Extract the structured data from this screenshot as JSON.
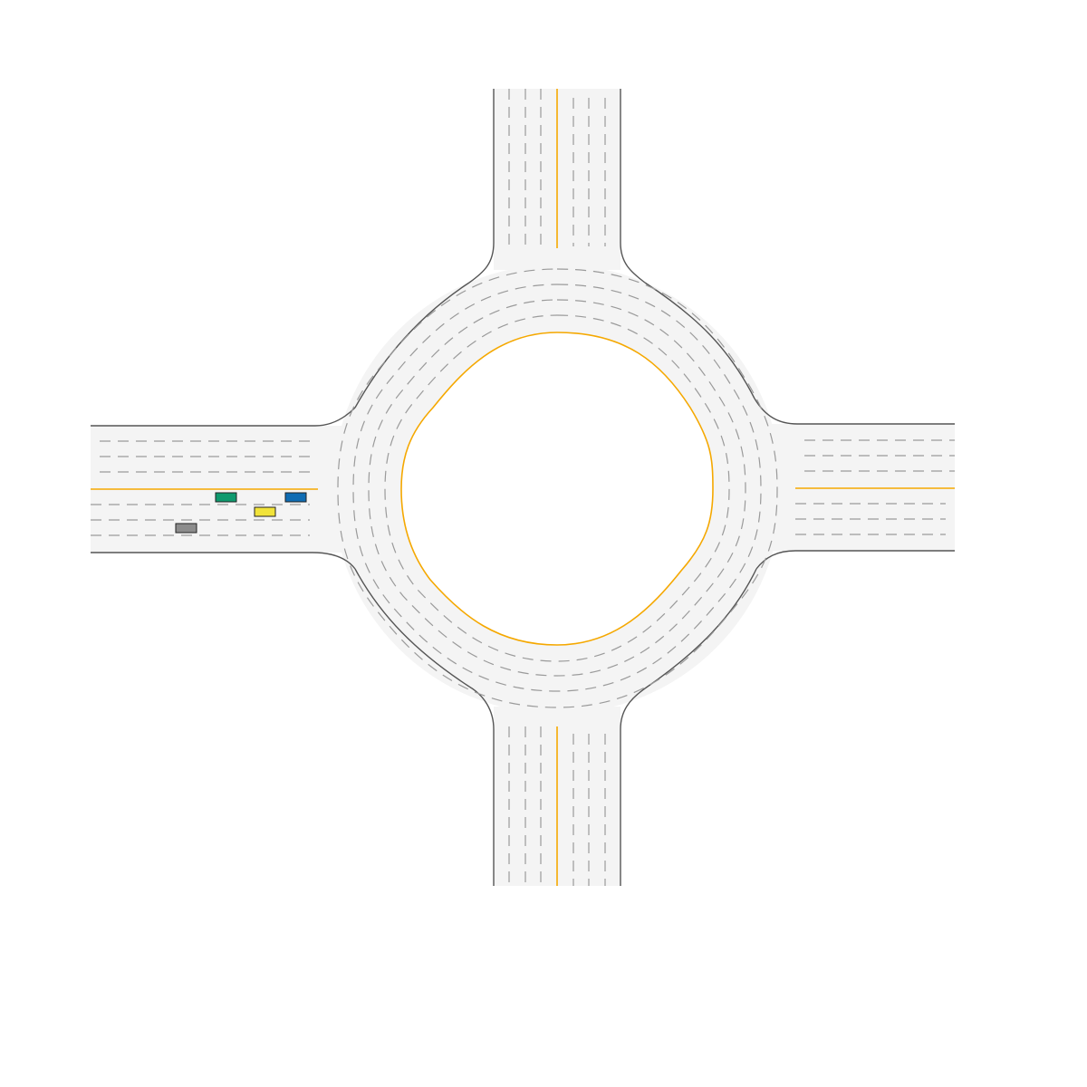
{
  "scene": {
    "type": "roundabout",
    "approach_arms": [
      "north",
      "east",
      "south",
      "west"
    ],
    "lanes_per_direction": 4,
    "circulating_lanes": 4
  },
  "colors": {
    "background": "#ffffff",
    "road_surface": "#f4f4f4",
    "road_edge": "#555555",
    "center_line": "#f5a800",
    "lane_divider": "#9a9a9a"
  },
  "vehicles": [
    {
      "id": "vehicle-green",
      "color": "#0f9a6e",
      "arm": "west"
    },
    {
      "id": "vehicle-blue",
      "color": "#0f6cb3",
      "arm": "west"
    },
    {
      "id": "vehicle-yellow",
      "color": "#f1e33a",
      "arm": "west"
    },
    {
      "id": "vehicle-gray",
      "color": "#8c8c8c",
      "arm": "west"
    }
  ]
}
